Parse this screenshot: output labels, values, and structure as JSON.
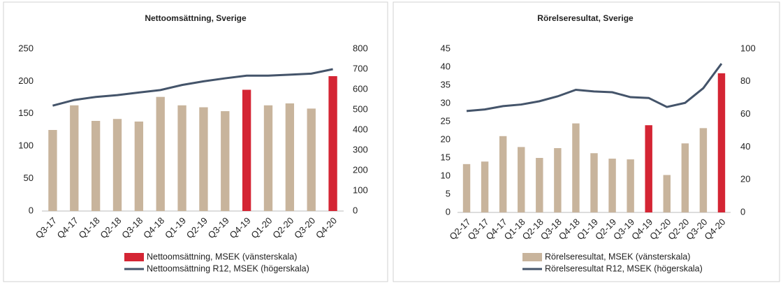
{
  "chart_data": [
    {
      "type": "bar",
      "title": "Nettoomsättning, Sverige",
      "categories": [
        "Q3-17",
        "Q4-17",
        "Q1-18",
        "Q2-18",
        "Q3-18",
        "Q4-18",
        "Q1-19",
        "Q2-19",
        "Q3-19",
        "Q4-19",
        "Q1-20",
        "Q2-20",
        "Q3-20",
        "Q4-20"
      ],
      "series": [
        {
          "name": "Nettoomsättning, MSEK (vänsterskala)",
          "color": "#d42534",
          "colors": [
            "#c8b49c",
            "#c8b49c",
            "#c8b49c",
            "#c8b49c",
            "#c8b49c",
            "#c8b49c",
            "#c8b49c",
            "#c8b49c",
            "#c8b49c",
            "#d42534",
            "#c8b49c",
            "#c8b49c",
            "#c8b49c",
            "#d42534"
          ],
          "values": [
            125,
            163,
            139,
            142,
            138,
            176,
            163,
            160,
            154,
            187,
            163,
            166,
            158,
            208
          ]
        },
        {
          "name": "Nettoomsättning R12, MSEK (högerskala)",
          "color": "#44546a",
          "axis": "y2",
          "values": [
            520,
            548,
            563,
            572,
            585,
            597,
            622,
            640,
            655,
            668,
            668,
            673,
            678,
            700
          ]
        }
      ],
      "ylim": [
        0,
        250
      ],
      "yticks": [
        0,
        50,
        100,
        150,
        200,
        250
      ],
      "y2lim": [
        0,
        800
      ],
      "y2ticks": [
        0,
        100,
        200,
        300,
        400,
        500,
        600,
        700,
        800
      ]
    },
    {
      "type": "bar",
      "title": "Rörelseresultat, Sverige",
      "categories": [
        "Q2-17",
        "Q3-17",
        "Q4-17",
        "Q1-18",
        "Q2-18",
        "Q3-18",
        "Q4-18",
        "Q1-19",
        "Q2-19",
        "Q3-19",
        "Q4-19",
        "Q1-20",
        "Q2-20",
        "Q3-20",
        "Q4-20"
      ],
      "series": [
        {
          "name": "Rörelseresultat, MSEK (vänsterskala)",
          "color": "#c8b49c",
          "colors": [
            "#c8b49c",
            "#c8b49c",
            "#c8b49c",
            "#c8b49c",
            "#c8b49c",
            "#c8b49c",
            "#c8b49c",
            "#c8b49c",
            "#c8b49c",
            "#c8b49c",
            "#d42534",
            "#c8b49c",
            "#c8b49c",
            "#c8b49c",
            "#d42534"
          ],
          "values": [
            13.3,
            14,
            21,
            18,
            15,
            17.7,
            24.5,
            16.3,
            14.8,
            14.6,
            24,
            10.3,
            19,
            23.2,
            38.3
          ]
        },
        {
          "name": "Rörelseresultat R12, MSEK (högerskala)",
          "color": "#44546a",
          "axis": "y2",
          "values": [
            62,
            63,
            65,
            66,
            68,
            71,
            75,
            74,
            73.5,
            70.5,
            70,
            64.5,
            67,
            76,
            91
          ]
        }
      ],
      "ylim": [
        0,
        45
      ],
      "yticks": [
        0,
        5,
        10,
        15,
        20,
        25,
        30,
        35,
        40,
        45
      ],
      "y2lim": [
        0,
        100
      ],
      "y2ticks": [
        0,
        20,
        40,
        60,
        80,
        100
      ]
    }
  ]
}
